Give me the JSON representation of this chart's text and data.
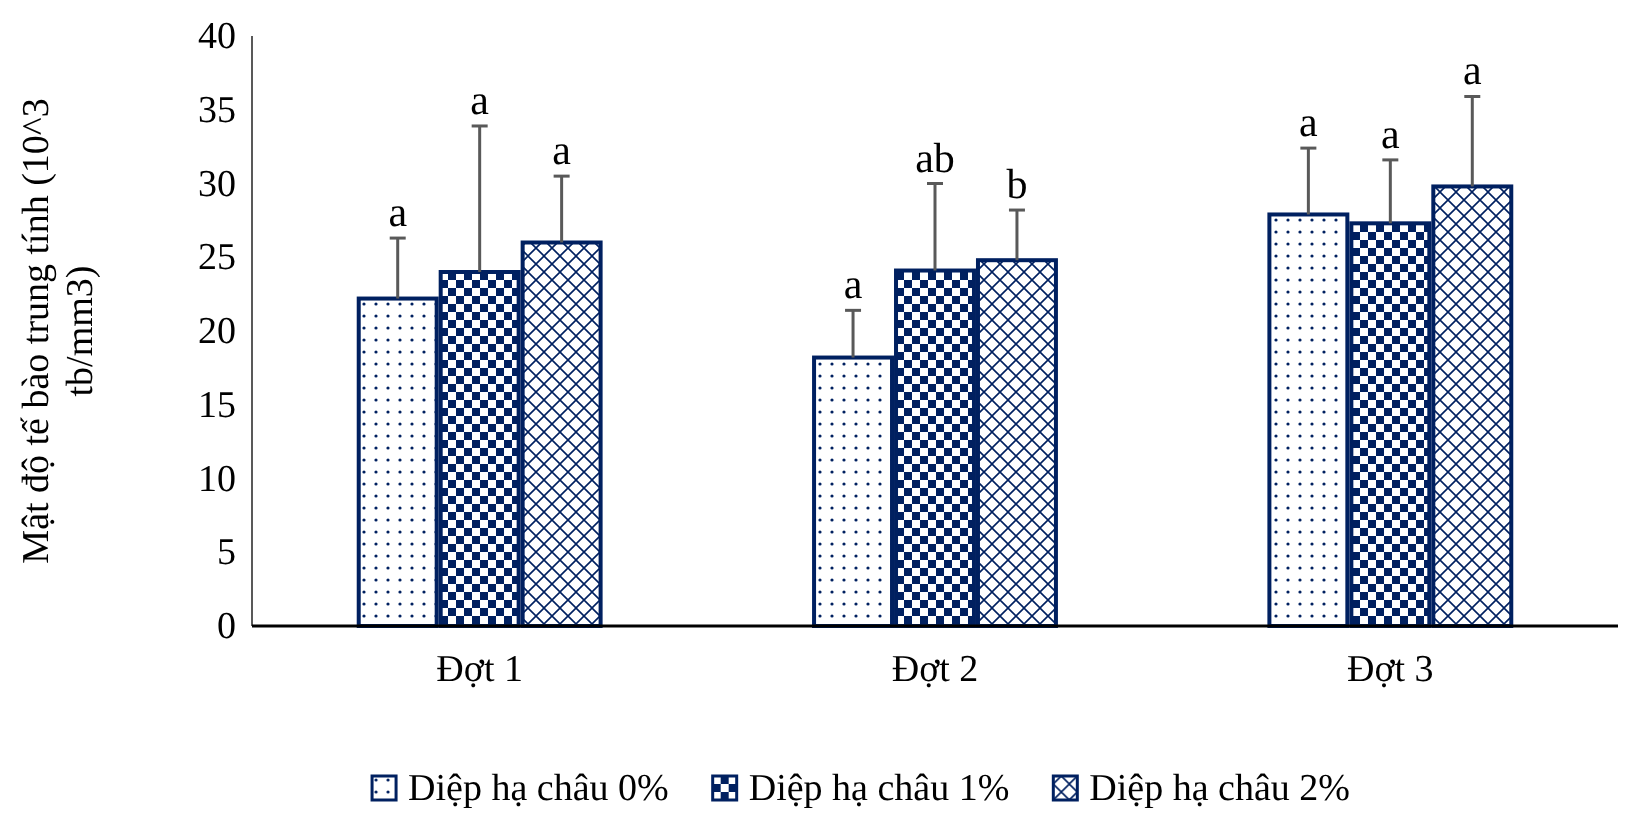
{
  "chart_data": {
    "type": "bar",
    "ylabel": "Mật độ tế bào trung tính (10^3 tb/mm3)",
    "categories": [
      "Đợt 1",
      "Đợt 2",
      "Đợt 3"
    ],
    "series": [
      {
        "name": "Diệp hạ châu 0%",
        "color": "#002060",
        "values": [
          22.2,
          18.2,
          27.9
        ],
        "errors": [
          4.1,
          3.2,
          4.5
        ]
      },
      {
        "name": "Diệp hạ châu 1%",
        "color": "#002060",
        "values": [
          24.0,
          24.1,
          27.3
        ],
        "errors": [
          9.9,
          5.9,
          4.3
        ]
      },
      {
        "name": "Diệp hạ châu 2%",
        "color": "#002060",
        "values": [
          26.0,
          24.8,
          29.8
        ],
        "errors": [
          4.5,
          3.4,
          6.1
        ]
      }
    ],
    "annotations": [
      "a",
      "a",
      "a",
      "a",
      "ab",
      "b",
      "a",
      "a",
      "a"
    ],
    "ylim": [
      0,
      40
    ],
    "yticks": [
      0,
      5,
      10,
      15,
      20,
      25,
      30,
      35,
      40
    ],
    "grid": false,
    "legend": "bottom"
  }
}
